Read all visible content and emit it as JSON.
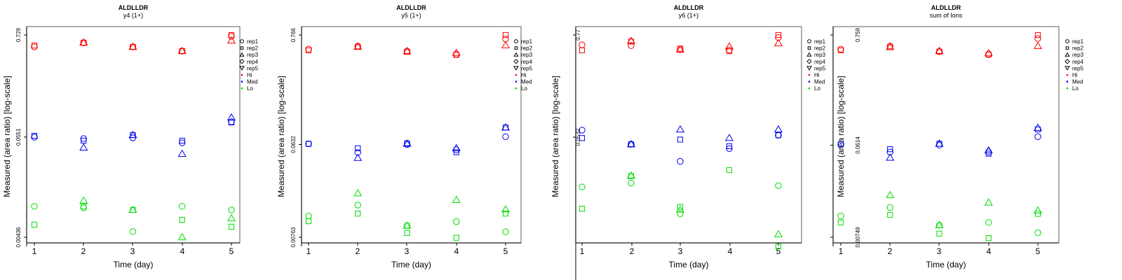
{
  "chart_data": [
    {
      "type": "scatter",
      "title": "ALDLLDR",
      "subtitle": "y4 (1+)",
      "xlabel": "Time (day)",
      "ylabel": "Measured (area ratio) [log-scale]",
      "yscale": "log",
      "x_ticks": [
        "1",
        "2",
        "3",
        "4",
        "5"
      ],
      "y_ticks": [
        {
          "value": 0.729,
          "label": "0.729"
        },
        {
          "value": 0.0551,
          "label": "0.0551"
        },
        {
          "value": 0.00436,
          "label": "0.00436"
        }
      ],
      "ylim": [
        0.00436,
        0.729
      ],
      "legend_position": "right",
      "series": [
        {
          "name": "rep1",
          "group": "Hi",
          "shape": "circle",
          "x": [
            1,
            2,
            3,
            4,
            5
          ],
          "y": [
            0.539,
            0.6,
            0.539,
            0.485,
            0.704
          ]
        },
        {
          "name": "rep2",
          "group": "Hi",
          "shape": "square",
          "x": [
            1,
            2,
            3,
            4,
            5
          ],
          "y": [
            0.559,
            0.6,
            0.539,
            0.485,
            0.729
          ]
        },
        {
          "name": "rep3",
          "group": "Hi",
          "shape": "triangle",
          "x": [
            2,
            3,
            4,
            5
          ],
          "y": [
            0.6,
            0.539,
            0.485,
            0.633
          ]
        },
        {
          "name": "rep1",
          "group": "Med",
          "shape": "circle",
          "x": [
            1,
            2,
            3,
            4,
            5
          ],
          "y": [
            0.0549,
            0.053,
            0.054,
            0.0477,
            0.0811
          ]
        },
        {
          "name": "rep2",
          "group": "Med",
          "shape": "square",
          "x": [
            1,
            2,
            3,
            4,
            5
          ],
          "y": [
            0.0569,
            0.0503,
            0.0579,
            0.0503,
            0.0797
          ]
        },
        {
          "name": "rep3",
          "group": "Med",
          "shape": "triangle",
          "x": [
            2,
            3,
            4,
            5
          ],
          "y": [
            0.0421,
            0.0579,
            0.0359,
            0.0902
          ]
        },
        {
          "name": "rep1",
          "group": "Lo",
          "shape": "circle",
          "x": [
            1,
            2,
            3,
            4,
            5
          ],
          "y": [
            0.00953,
            0.00919,
            0.00504,
            0.00953,
            0.00871
          ]
        },
        {
          "name": "rep2",
          "group": "Lo",
          "shape": "square",
          "x": [
            1,
            2,
            3,
            4,
            5
          ],
          "y": [
            0.00601,
            0.00953,
            0.00871,
            0.0068,
            0.0057
          ]
        },
        {
          "name": "rep3",
          "group": "Lo",
          "shape": "triangle",
          "x": [
            2,
            3,
            4,
            5
          ],
          "y": [
            0.011,
            0.00871,
            0.00436,
            0.00705
          ]
        }
      ]
    },
    {
      "type": "scatter",
      "title": "ALDLLDR",
      "subtitle": "y5 (1+)",
      "xlabel": "Time (day)",
      "ylabel": "Measured (area ratio) [log-scale]",
      "yscale": "log",
      "x_ticks": [
        "1",
        "2",
        "3",
        "4",
        "5"
      ],
      "y_ticks": [
        {
          "value": 0.766,
          "label": "0.766"
        },
        {
          "value": 0.0632,
          "label": "0.0632"
        },
        {
          "value": 0.00763,
          "label": "0.00763"
        }
      ],
      "ylim": [
        0.00763,
        0.766
      ],
      "legend_position": "right",
      "series": [
        {
          "name": "rep1",
          "group": "Hi",
          "shape": "circle",
          "x": [
            1,
            2,
            3,
            4,
            5
          ],
          "y": [
            0.556,
            0.594,
            0.53,
            0.494,
            0.7
          ]
        },
        {
          "name": "rep2",
          "group": "Hi",
          "shape": "square",
          "x": [
            1,
            2,
            3,
            4,
            5
          ],
          "y": [
            0.54,
            0.585,
            0.522,
            0.487,
            0.766
          ]
        },
        {
          "name": "rep3",
          "group": "Hi",
          "shape": "triangle",
          "x": [
            2,
            3,
            4,
            5
          ],
          "y": [
            0.585,
            0.53,
            0.51,
            0.605
          ]
        },
        {
          "name": "rep1",
          "group": "Med",
          "shape": "circle",
          "x": [
            1,
            2,
            3,
            4,
            5
          ],
          "y": [
            0.0642,
            0.0527,
            0.0632,
            0.056,
            0.0755
          ]
        },
        {
          "name": "rep2",
          "group": "Med",
          "shape": "square",
          "x": [
            1,
            2,
            3,
            4,
            5
          ],
          "y": [
            0.0642,
            0.058,
            0.0651,
            0.053,
            0.093
          ]
        },
        {
          "name": "rep3",
          "group": "Med",
          "shape": "triangle",
          "x": [
            2,
            3,
            4,
            5
          ],
          "y": [
            0.0465,
            0.0642,
            0.058,
            0.093
          ]
        },
        {
          "name": "rep1",
          "group": "Lo",
          "shape": "circle",
          "x": [
            1,
            2,
            3,
            4,
            5
          ],
          "y": [
            0.0124,
            0.0159,
            0.01,
            0.0109,
            0.00866
          ]
        },
        {
          "name": "rep2",
          "group": "Lo",
          "shape": "square",
          "x": [
            1,
            2,
            3,
            4,
            5
          ],
          "y": [
            0.011,
            0.0131,
            0.00842,
            0.00754,
            0.0131
          ]
        },
        {
          "name": "rep3",
          "group": "Lo",
          "shape": "triangle",
          "x": [
            2,
            3,
            4,
            5
          ],
          "y": [
            0.0208,
            0.0099,
            0.0178,
            0.0144
          ]
        }
      ]
    },
    {
      "type": "scatter",
      "title": "ALDLLDR",
      "subtitle": "y6 (1+)",
      "xlabel": "Time (day)",
      "ylabel": "Measured (area ratio) [log-scale]",
      "yscale": "log",
      "x_ticks": [
        "1",
        "2",
        "3",
        "4",
        "5"
      ],
      "y_ticks": [
        {
          "value": 0.77,
          "label": "0.77"
        },
        {
          "value": 0.0532,
          "label": "0.0532"
        }
      ],
      "ylim": [
        0.0028,
        0.77
      ],
      "legend_position": "right",
      "series": [
        {
          "name": "rep1",
          "group": "Hi",
          "shape": "circle",
          "x": [
            1,
            2,
            3,
            4,
            5
          ],
          "y": [
            0.595,
            0.583,
            0.525,
            0.52,
            0.72
          ]
        },
        {
          "name": "rep2",
          "group": "Hi",
          "shape": "square",
          "x": [
            1,
            2,
            3,
            4,
            5
          ],
          "y": [
            0.515,
            0.65,
            0.54,
            0.505,
            0.77
          ]
        },
        {
          "name": "rep3",
          "group": "Hi",
          "shape": "triangle",
          "x": [
            2,
            3,
            4,
            5
          ],
          "y": [
            0.66,
            0.525,
            0.57,
            0.62
          ]
        },
        {
          "name": "rep1",
          "group": "Med",
          "shape": "circle",
          "x": [
            1,
            2,
            3,
            4,
            5
          ],
          "y": [
            0.064,
            0.0442,
            0.0283,
            0.0395,
            0.056
          ]
        },
        {
          "name": "rep2",
          "group": "Med",
          "shape": "square",
          "x": [
            1,
            2,
            3,
            4,
            5
          ],
          "y": [
            0.052,
            0.0442,
            0.05,
            0.042,
            0.056
          ]
        },
        {
          "name": "rep3",
          "group": "Med",
          "shape": "triangle",
          "x": [
            2,
            3,
            4,
            5
          ],
          "y": [
            0.0442,
            0.065,
            0.052,
            0.065
          ]
        },
        {
          "name": "rep1",
          "group": "Lo",
          "shape": "circle",
          "x": [
            1,
            2,
            3,
            5
          ],
          "y": [
            0.0145,
            0.016,
            0.0072,
            0.015
          ]
        },
        {
          "name": "rep2",
          "group": "Lo",
          "shape": "square",
          "x": [
            1,
            2,
            3,
            4,
            5
          ],
          "y": [
            0.0082,
            0.0192,
            0.0086,
            0.0225,
            0.00305
          ]
        },
        {
          "name": "rep3",
          "group": "Lo",
          "shape": "triangle",
          "x": [
            2,
            3,
            5
          ],
          "y": [
            0.0195,
            0.008,
            0.0042
          ]
        }
      ]
    },
    {
      "type": "scatter",
      "title": "ALDLLDR",
      "subtitle": "sum of Ions",
      "xlabel": "Time (day)",
      "ylabel": "Measured (area ratio) [log-scale]",
      "yscale": "log",
      "x_ticks": [
        "1",
        "2",
        "3",
        "4",
        "5"
      ],
      "y_ticks": [
        {
          "value": 0.759,
          "label": "0.759"
        },
        {
          "value": 0.0614,
          "label": "0.0614"
        },
        {
          "value": 0.00749,
          "label": "0.00749"
        }
      ],
      "ylim": [
        0.00749,
        0.759
      ],
      "legend_position": "right",
      "series": [
        {
          "name": "rep1",
          "group": "Hi",
          "shape": "circle",
          "x": [
            1,
            2,
            3,
            4,
            5
          ],
          "y": [
            0.549,
            0.59,
            0.52,
            0.486,
            0.7
          ]
        },
        {
          "name": "rep2",
          "group": "Hi",
          "shape": "square",
          "x": [
            1,
            2,
            3,
            4,
            5
          ],
          "y": [
            0.535,
            0.575,
            0.52,
            0.486,
            0.759
          ]
        },
        {
          "name": "rep3",
          "group": "Hi",
          "shape": "triangle",
          "x": [
            2,
            3,
            4,
            5
          ],
          "y": [
            0.575,
            0.527,
            0.5,
            0.59
          ]
        },
        {
          "name": "rep1",
          "group": "Med",
          "shape": "circle",
          "x": [
            1,
            2,
            3,
            4,
            5
          ],
          "y": [
            0.0624,
            0.0525,
            0.0614,
            0.0525,
            0.0745
          ]
        },
        {
          "name": "rep2",
          "group": "Med",
          "shape": "square",
          "x": [
            1,
            2,
            3,
            4,
            5
          ],
          "y": [
            0.0624,
            0.056,
            0.0634,
            0.0505,
            0.088
          ]
        },
        {
          "name": "rep3",
          "group": "Med",
          "shape": "triangle",
          "x": [
            2,
            3,
            4,
            5
          ],
          "y": [
            0.046,
            0.0634,
            0.0545,
            0.091
          ]
        },
        {
          "name": "rep1",
          "group": "Lo",
          "shape": "circle",
          "x": [
            1,
            2,
            3,
            4,
            5
          ],
          "y": [
            0.0122,
            0.0148,
            0.00985,
            0.0105,
            0.0083
          ]
        },
        {
          "name": "rep2",
          "group": "Lo",
          "shape": "square",
          "x": [
            1,
            2,
            3,
            4,
            5
          ],
          "y": [
            0.0105,
            0.0125,
            0.00815,
            0.00735,
            0.0128
          ]
        },
        {
          "name": "rep3",
          "group": "Lo",
          "shape": "triangle",
          "x": [
            2,
            3,
            4,
            5
          ],
          "y": [
            0.0196,
            0.00985,
            0.0165,
            0.0138
          ]
        }
      ]
    }
  ],
  "legend": {
    "items": [
      {
        "label": "rep1",
        "symbol": "circle"
      },
      {
        "label": "rep2",
        "symbol": "square"
      },
      {
        "label": "rep3",
        "symbol": "triangle"
      },
      {
        "label": "rep4",
        "symbol": "diamond"
      },
      {
        "label": "rep5",
        "symbol": "triangle-down"
      },
      {
        "label": "Hi",
        "symbol": "dot",
        "color": "#ff0000"
      },
      {
        "label": "Med",
        "symbol": "dot",
        "color": "#0000ff"
      },
      {
        "label": "Lo",
        "symbol": "dot",
        "color": "#00dd00"
      }
    ]
  },
  "colors": {
    "Hi": "#ff0000",
    "Med": "#0000ee",
    "Lo": "#00dd00",
    "frame": "#777777",
    "axis": "#000000"
  }
}
